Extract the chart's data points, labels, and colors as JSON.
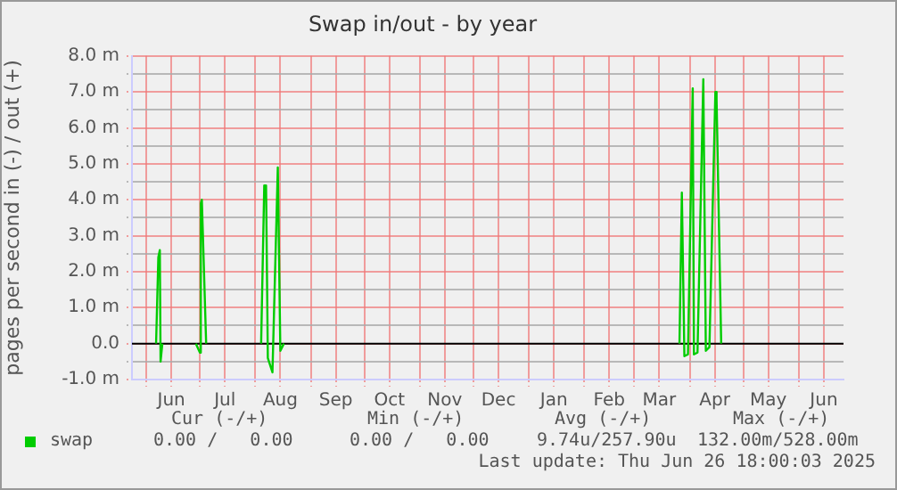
{
  "chart_data": {
    "type": "line",
    "title": "Swap in/out - by year",
    "ylabel": "pages per second in (-) / out (+)",
    "x": [
      "2024-06-06T12:00",
      "2024-06-07T18:00",
      "2024-06-08T14:00",
      "2024-06-09T00:00",
      "2024-06-10T00:00",
      "2024-06-10T12:00",
      "2024-06-28T18:00",
      "2024-07-01T00:00",
      "2024-07-01T12:00",
      "2024-07-02T02:00",
      "2024-07-04T12:00",
      "2024-07-05T00:00",
      "2024-08-04T06:00",
      "2024-08-06T00:00",
      "2024-08-07T00:00",
      "2024-08-08T00:00",
      "2024-08-10T14:00",
      "2024-08-13T14:00",
      "2024-08-15T00:00",
      "2024-08-17T00:00",
      "2024-08-18T00:00",
      "2025-03-26T06:00",
      "2025-03-27T14:00",
      "2025-03-29T00:00",
      "2025-03-31T00:00",
      "2025-04-02T16:00",
      "2025-04-03T08:00",
      "2025-04-05T08:00",
      "2025-04-08T14:00",
      "2025-04-10T00:00",
      "2025-04-12T00:00",
      "2025-04-15T08:00",
      "2025-04-16T00:00",
      "2025-04-18T14:00"
    ],
    "series": [
      {
        "name": "swap",
        "color": "#00cc00",
        "values": [
          0,
          2.4,
          2.6,
          -0.5,
          0,
          null,
          0,
          -0.25,
          3.9,
          4.0,
          0,
          null,
          0,
          4.4,
          4.4,
          -0.4,
          -0.8,
          4.9,
          -0.2,
          0,
          null,
          0,
          4.2,
          -0.35,
          -0.3,
          7.1,
          -0.3,
          -0.25,
          7.35,
          -0.2,
          -0.1,
          7.0,
          6.8,
          0
        ]
      }
    ],
    "xlim": [
      "2024-05-24",
      "2025-06-26"
    ],
    "xticks": [
      {
        "value": "2024-06-01",
        "label": null
      },
      {
        "value": "2024-06-15",
        "label": "Jun"
      },
      {
        "value": "2024-07-01",
        "label": null
      },
      {
        "value": "2024-07-15",
        "label": "Jul"
      },
      {
        "value": "2024-08-01",
        "label": null
      },
      {
        "value": "2024-08-15",
        "label": "Aug"
      },
      {
        "value": "2024-09-01",
        "label": null
      },
      {
        "value": "2024-09-15",
        "label": "Sep"
      },
      {
        "value": "2024-10-01",
        "label": null
      },
      {
        "value": "2024-10-15",
        "label": "Oct"
      },
      {
        "value": "2024-11-01",
        "label": null
      },
      {
        "value": "2024-11-15",
        "label": "Nov"
      },
      {
        "value": "2024-12-01",
        "label": null
      },
      {
        "value": "2024-12-15",
        "label": "Dec"
      },
      {
        "value": "2025-01-01",
        "label": null
      },
      {
        "value": "2025-01-15",
        "label": "Jan"
      },
      {
        "value": "2025-02-01",
        "label": null
      },
      {
        "value": "2025-02-15",
        "label": "Feb"
      },
      {
        "value": "2025-03-01",
        "label": null
      },
      {
        "value": "2025-03-15",
        "label": "Mar"
      },
      {
        "value": "2025-04-01",
        "label": null
      },
      {
        "value": "2025-04-15",
        "label": "Apr"
      },
      {
        "value": "2025-05-01",
        "label": null
      },
      {
        "value": "2025-05-15",
        "label": "May"
      },
      {
        "value": "2025-06-01",
        "label": null
      },
      {
        "value": "2025-06-15",
        "label": "Jun"
      }
    ],
    "ylim": [
      -1,
      8
    ],
    "yticks": [
      {
        "value": -1,
        "label": "-1.0 m"
      },
      {
        "value": -0.5,
        "label": null
      },
      {
        "value": 0,
        "label": "0.0"
      },
      {
        "value": 0.5,
        "label": null
      },
      {
        "value": 1,
        "label": "1.0 m"
      },
      {
        "value": 1.5,
        "label": null
      },
      {
        "value": 2,
        "label": "2.0 m"
      },
      {
        "value": 2.5,
        "label": null
      },
      {
        "value": 3,
        "label": "3.0 m"
      },
      {
        "value": 3.5,
        "label": null
      },
      {
        "value": 4,
        "label": "4.0 m"
      },
      {
        "value": 4.5,
        "label": null
      },
      {
        "value": 5,
        "label": "5.0 m"
      },
      {
        "value": 5.5,
        "label": null
      },
      {
        "value": 6,
        "label": "6.0 m"
      },
      {
        "value": 6.5,
        "label": null
      },
      {
        "value": 7,
        "label": "7.0 m"
      },
      {
        "value": 7.5,
        "label": null
      },
      {
        "value": 8,
        "label": "8.0 m"
      }
    ],
    "ref_lines": [
      {
        "axis": "y",
        "value": 0,
        "color": "#000000"
      }
    ],
    "grid": true,
    "legend": "bottom",
    "marker": "none",
    "line_style": "solid",
    "annotations": [
      "Cur (-/+)",
      "Min (-/+)",
      "Avg (-/+)",
      "Max (-/+)",
      "0.00 /   0.00",
      "0.00 /   0.00",
      "9.74u/257.90u",
      "132.00m/528.00m",
      "Last update: Thu Jun 26 18:00:03 2025"
    ]
  }
}
